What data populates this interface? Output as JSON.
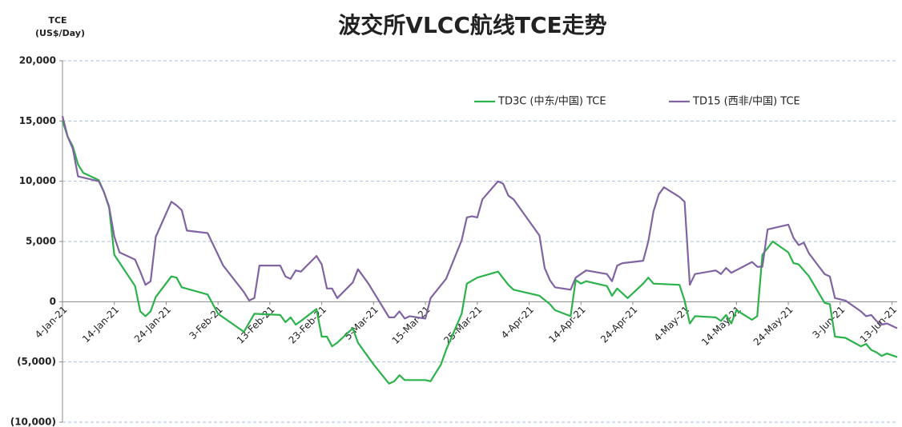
{
  "chart_data": {
    "type": "line",
    "title": "波交所VLCC航线TCE走势",
    "y_label": "TCE",
    "y_unit_label": "(US$/Day)",
    "xlim": [
      "2021-01-04",
      "2021-06-14"
    ],
    "xticks": [
      {
        "value": "2021-01-04",
        "label": "4-Jan-21"
      },
      {
        "value": "2021-01-14",
        "label": "14-Jan-21"
      },
      {
        "value": "2021-01-24",
        "label": "24-Jan-21"
      },
      {
        "value": "2021-02-03",
        "label": "3-Feb-21"
      },
      {
        "value": "2021-02-13",
        "label": "13-Feb-21"
      },
      {
        "value": "2021-02-23",
        "label": "23-Feb-21"
      },
      {
        "value": "2021-03-05",
        "label": "5-Mar-21"
      },
      {
        "value": "2021-03-15",
        "label": "15-Mar-21"
      },
      {
        "value": "2021-03-25",
        "label": "25-Mar-21"
      },
      {
        "value": "2021-04-04",
        "label": "4-Apr-21"
      },
      {
        "value": "2021-04-14",
        "label": "14-Apr-21"
      },
      {
        "value": "2021-04-24",
        "label": "24-Apr-21"
      },
      {
        "value": "2021-05-04",
        "label": "4-May-21"
      },
      {
        "value": "2021-05-14",
        "label": "14-May-21"
      },
      {
        "value": "2021-05-24",
        "label": "24-May-21"
      },
      {
        "value": "2021-06-03",
        "label": "3-Jun-21"
      },
      {
        "value": "2021-06-13",
        "label": "13-Jun-21"
      }
    ],
    "ylim": [
      -10000,
      20000
    ],
    "yticks": [
      {
        "value": -10000,
        "label": "(10,000)"
      },
      {
        "value": -5000,
        "label": "(5,000)"
      },
      0,
      {
        "value": 5000,
        "label": "5,000"
      },
      {
        "value": 10000,
        "label": "10,000"
      },
      {
        "value": 15000,
        "label": "15,000"
      },
      {
        "value": 20000,
        "label": "20,000"
      }
    ],
    "grid": true,
    "legend": "top-right",
    "series": [
      {
        "name": "TD3C (中东/中国) TCE",
        "color": "#2bb24a",
        "x": [
          "2021-01-04",
          "2021-01-05",
          "2021-01-06",
          "2021-01-07",
          "2021-01-08",
          "2021-01-11",
          "2021-01-12",
          "2021-01-13",
          "2021-01-14",
          "2021-01-18",
          "2021-01-19",
          "2021-01-20",
          "2021-01-21",
          "2021-01-22",
          "2021-01-25",
          "2021-01-26",
          "2021-01-27",
          "2021-02-01",
          "2021-02-03",
          "2021-02-08",
          "2021-02-10",
          "2021-02-15",
          "2021-02-16",
          "2021-02-17",
          "2021-02-18",
          "2021-02-19",
          "2021-02-22",
          "2021-02-23",
          "2021-02-24",
          "2021-02-25",
          "2021-02-26",
          "2021-03-01",
          "2021-03-02",
          "2021-03-05",
          "2021-03-08",
          "2021-03-09",
          "2021-03-10",
          "2021-03-11",
          "2021-03-15",
          "2021-03-16",
          "2021-03-17",
          "2021-03-18",
          "2021-03-19",
          "2021-03-22",
          "2021-03-23",
          "2021-03-25",
          "2021-03-29",
          "2021-03-31",
          "2021-04-01",
          "2021-04-06",
          "2021-04-08",
          "2021-04-09",
          "2021-04-12",
          "2021-04-13",
          "2021-04-14",
          "2021-04-15",
          "2021-04-19",
          "2021-04-20",
          "2021-04-21",
          "2021-04-23",
          "2021-04-26",
          "2021-04-27",
          "2021-04-28",
          "2021-05-03",
          "2021-05-04",
          "2021-05-05",
          "2021-05-06",
          "2021-05-10",
          "2021-05-11",
          "2021-05-12",
          "2021-05-13",
          "2021-05-14",
          "2021-05-17",
          "2021-05-18",
          "2021-05-19",
          "2021-05-21",
          "2021-05-24",
          "2021-05-25",
          "2021-05-26",
          "2021-05-28",
          "2021-05-31",
          "2021-06-01",
          "2021-06-02",
          "2021-06-04",
          "2021-06-07",
          "2021-06-08",
          "2021-06-09",
          "2021-06-10",
          "2021-06-11",
          "2021-06-12",
          "2021-06-14"
        ],
        "values": [
          15000,
          13700,
          12900,
          11400,
          10700,
          10100,
          9100,
          7800,
          3900,
          1300,
          -800,
          -1200,
          -800,
          400,
          2100,
          2000,
          1200,
          600,
          -1000,
          -2500,
          -1000,
          -1100,
          -1700,
          -1300,
          -1900,
          -1600,
          -600,
          -2900,
          -2900,
          -3700,
          -3400,
          -2200,
          -3400,
          -5200,
          -6800,
          -6600,
          -6100,
          -6500,
          -6500,
          -6600,
          -5900,
          -5200,
          -4000,
          -1000,
          1500,
          2000,
          2500,
          1400,
          1000,
          500,
          -200,
          -700,
          -1200,
          1800,
          1500,
          1700,
          1300,
          500,
          1100,
          300,
          1500,
          2000,
          1500,
          1400,
          100,
          -1800,
          -1200,
          -1300,
          -1600,
          -1100,
          -1800,
          -700,
          -1500,
          -1200,
          3900,
          5000,
          4100,
          3200,
          3100,
          2100,
          -100,
          -200,
          -2900,
          -3000,
          -3700,
          -3500,
          -4000,
          -4200,
          -4500,
          -4300,
          -4600
        ]
      },
      {
        "name": "TD15 (西非/中国) TCE",
        "color": "#8064a2",
        "x": [
          "2021-01-04",
          "2021-01-05",
          "2021-01-06",
          "2021-01-07",
          "2021-01-11",
          "2021-01-12",
          "2021-01-13",
          "2021-01-14",
          "2021-01-15",
          "2021-01-18",
          "2021-01-19",
          "2021-01-20",
          "2021-01-21",
          "2021-01-22",
          "2021-01-25",
          "2021-01-26",
          "2021-01-27",
          "2021-01-28",
          "2021-02-01",
          "2021-02-04",
          "2021-02-08",
          "2021-02-09",
          "2021-02-10",
          "2021-02-11",
          "2021-02-15",
          "2021-02-16",
          "2021-02-17",
          "2021-02-18",
          "2021-02-19",
          "2021-02-22",
          "2021-02-23",
          "2021-02-24",
          "2021-02-25",
          "2021-02-26",
          "2021-03-01",
          "2021-03-02",
          "2021-03-04",
          "2021-03-08",
          "2021-03-09",
          "2021-03-10",
          "2021-03-11",
          "2021-03-12",
          "2021-03-15",
          "2021-03-16",
          "2021-03-19",
          "2021-03-22",
          "2021-03-23",
          "2021-03-24",
          "2021-03-25",
          "2021-03-26",
          "2021-03-29",
          "2021-03-30",
          "2021-03-31",
          "2021-04-01",
          "2021-04-06",
          "2021-04-07",
          "2021-04-08",
          "2021-04-09",
          "2021-04-12",
          "2021-04-13",
          "2021-04-14",
          "2021-04-15",
          "2021-04-19",
          "2021-04-20",
          "2021-04-21",
          "2021-04-22",
          "2021-04-26",
          "2021-04-27",
          "2021-04-28",
          "2021-04-29",
          "2021-04-30",
          "2021-05-03",
          "2021-05-04",
          "2021-05-05",
          "2021-05-06",
          "2021-05-10",
          "2021-05-11",
          "2021-05-12",
          "2021-05-13",
          "2021-05-17",
          "2021-05-18",
          "2021-05-19",
          "2021-05-20",
          "2021-05-24",
          "2021-05-25",
          "2021-05-26",
          "2021-05-27",
          "2021-05-28",
          "2021-05-31",
          "2021-06-01",
          "2021-06-02",
          "2021-06-04",
          "2021-06-07",
          "2021-06-08",
          "2021-06-09",
          "2021-06-10",
          "2021-06-11",
          "2021-06-12",
          "2021-06-14"
        ],
        "values": [
          15400,
          13700,
          12700,
          10400,
          10000,
          9100,
          7900,
          5400,
          4100,
          3500,
          2500,
          1400,
          1700,
          5400,
          8300,
          8000,
          7600,
          5900,
          5700,
          3000,
          800,
          100,
          300,
          3000,
          3000,
          2100,
          1900,
          2600,
          2500,
          3800,
          3100,
          1100,
          1100,
          300,
          1600,
          2700,
          1500,
          -1300,
          -1300,
          -800,
          -1400,
          -1200,
          -1400,
          300,
          1900,
          5100,
          7000,
          7100,
          7000,
          8500,
          10000,
          9800,
          8800,
          8500,
          5500,
          2800,
          1800,
          1200,
          1000,
          2000,
          2300,
          2600,
          2300,
          1700,
          3000,
          3200,
          3400,
          5000,
          7500,
          8900,
          9500,
          8700,
          8300,
          1400,
          2300,
          2600,
          2300,
          2800,
          2400,
          3300,
          2900,
          2900,
          6000,
          6400,
          5300,
          4700,
          4900,
          4000,
          2300,
          2100,
          300,
          100,
          -800,
          -1200,
          -1100,
          -1600,
          -1900,
          -1800,
          -2200
        ]
      }
    ]
  }
}
